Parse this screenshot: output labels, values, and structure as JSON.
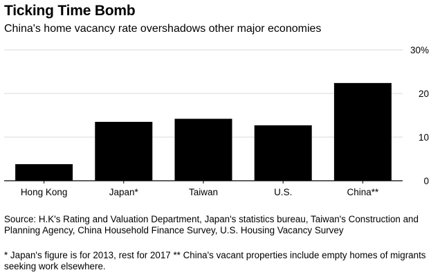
{
  "chart_data": {
    "type": "bar",
    "title": "Ticking Time Bomb",
    "subtitle": "China's home vacancy rate overshadows other major economies",
    "categories": [
      "Hong Kong",
      "Japan*",
      "Taiwan",
      "U.S.",
      "China**"
    ],
    "values": [
      3.8,
      13.5,
      14.2,
      12.7,
      22.4
    ],
    "ylim": [
      0,
      30
    ],
    "yticks": [
      0,
      10,
      20,
      30
    ],
    "ytick_labels": [
      "0",
      "10",
      "20",
      "30%"
    ],
    "xlabel": "",
    "ylabel": "",
    "grid": true,
    "bar_color": "#000000",
    "grid_color": "#d9d9d9"
  },
  "footer": {
    "source": "Source: H.K's Rating and Valuation Department, Japan's statistics bureau, Taiwan's Construction and Planning Agency, China Household Finance Survey, U.S. Housing Vacancy Survey",
    "note": "* Japan's figure is for 2013, rest for 2017 ** China's vacant properties include empty homes of migrants seeking work elsewhere."
  }
}
